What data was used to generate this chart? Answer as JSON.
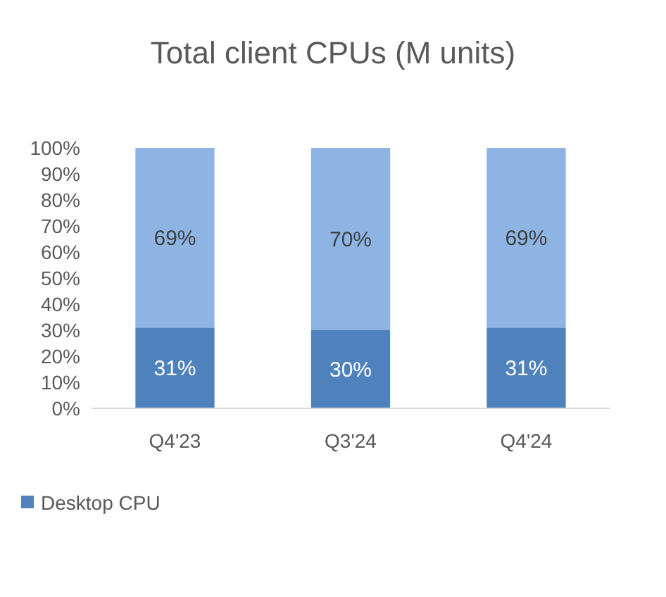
{
  "chart_data": {
    "type": "bar",
    "title": "Total client CPUs (M units)",
    "stacked": true,
    "categories": [
      "Q4'23",
      "Q3'24",
      "Q4'24"
    ],
    "series": [
      {
        "name": "Desktop CPU",
        "color": "#4f81bd",
        "values": [
          31,
          30,
          31
        ],
        "value_labels": [
          "31%",
          "30%",
          "31%"
        ]
      },
      {
        "color": "#8eb4e3",
        "values": [
          69,
          70,
          69
        ],
        "value_labels": [
          "69%",
          "70%",
          "69%"
        ]
      }
    ],
    "ylim": [
      0,
      100
    ],
    "yticks": [
      {
        "value": 0,
        "label": "0%"
      },
      {
        "value": 10,
        "label": "10%"
      },
      {
        "value": 20,
        "label": "20%"
      },
      {
        "value": 30,
        "label": "30%"
      },
      {
        "value": 40,
        "label": "40%"
      },
      {
        "value": 50,
        "label": "50%"
      },
      {
        "value": 60,
        "label": "60%"
      },
      {
        "value": 70,
        "label": "70%"
      },
      {
        "value": 80,
        "label": "80%"
      },
      {
        "value": 90,
        "label": "90%"
      },
      {
        "value": 100,
        "label": "100%"
      }
    ],
    "grid": false,
    "legend": "bottom left"
  }
}
